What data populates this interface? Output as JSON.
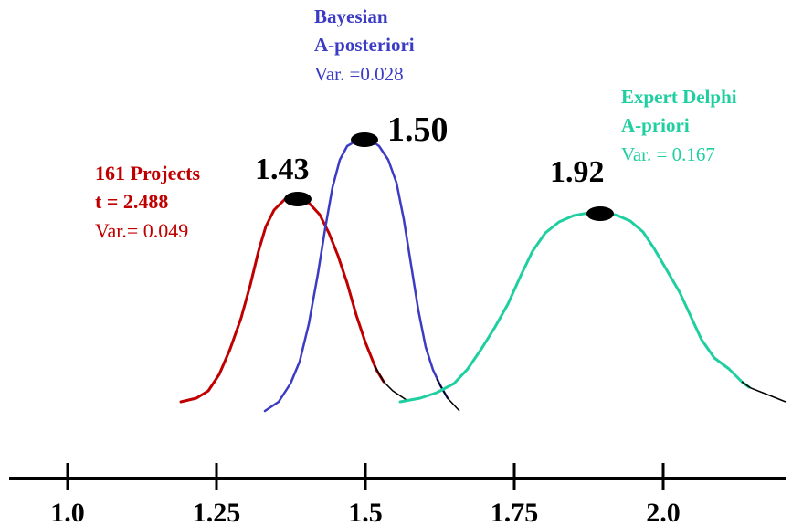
{
  "axis": {
    "ticks": [
      {
        "value": 1.0,
        "label": "1.0"
      },
      {
        "value": 1.25,
        "label": "1.25"
      },
      {
        "value": 1.5,
        "label": "1.5"
      },
      {
        "value": 1.75,
        "label": "1.75"
      },
      {
        "value": 2.0,
        "label": "2.0"
      }
    ]
  },
  "curves": {
    "projects": {
      "line1": "161 Projects",
      "line2": "t = 2.488",
      "line3": "Var.= 0.049",
      "peak_label": "1.43",
      "color": "#c00000",
      "mean": 1.43,
      "variance": 0.049
    },
    "bayesian": {
      "line1": "Bayesian",
      "line2": "A-posteriori",
      "line3": "Var. =0.028",
      "peak_label": "1.50",
      "color": "#3b3bc4",
      "mean": 1.5,
      "variance": 0.028
    },
    "expert": {
      "line1": "Expert Delphi",
      "line2": "A-priori",
      "line3": "Var. = 0.167",
      "peak_label": "1.92",
      "color": "#1fcfa0",
      "mean": 1.92,
      "variance": 0.167
    }
  }
}
